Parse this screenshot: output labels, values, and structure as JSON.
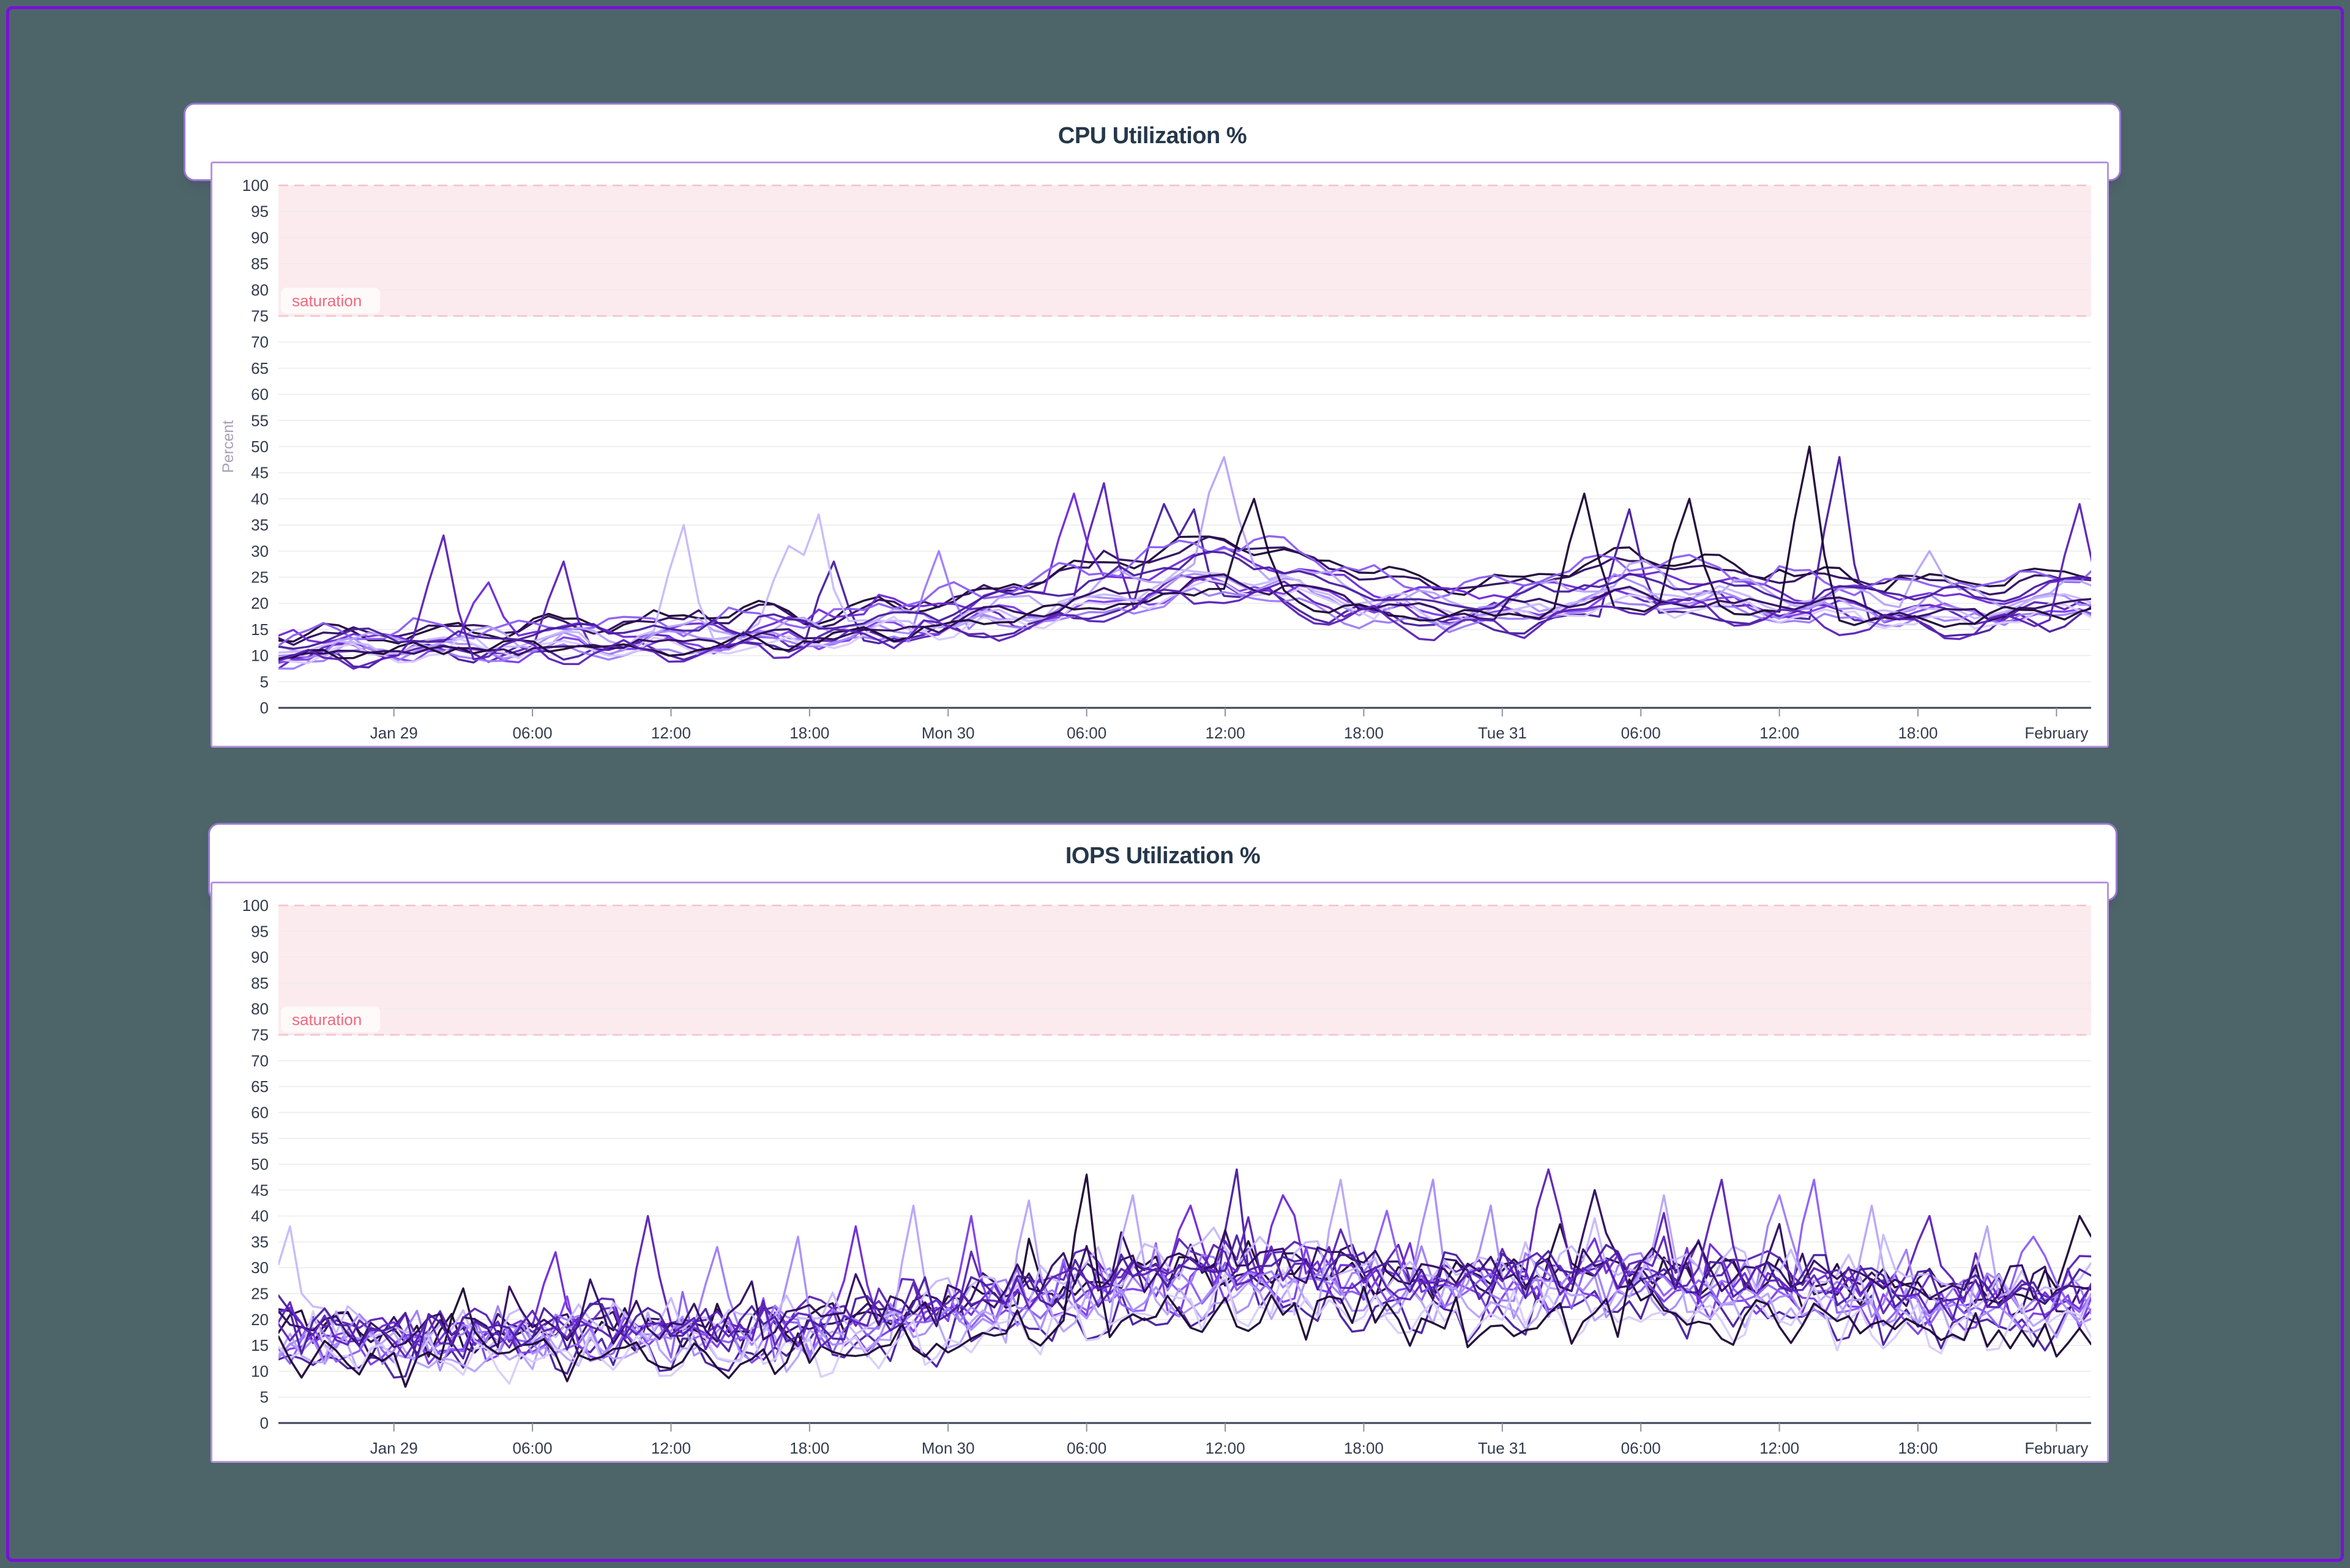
{
  "page": {
    "background_color": "#4d6569",
    "frame_color": "#7b10d9",
    "panel_color": "#ffffff",
    "title_card_border_color": "#9679d2",
    "panel_border_color": "#b794dd"
  },
  "chart_data": [
    {
      "type": "line",
      "title": "CPU Utilization %",
      "ylabel": "Percent",
      "xlabel": "",
      "ylim": [
        0,
        100
      ],
      "y_tick_step": 5,
      "x_unit": "hours since Jan 29 00:00",
      "x_domain": [
        -5,
        73.5
      ],
      "x_ticks": [
        {
          "t": 0,
          "label": "Jan 29"
        },
        {
          "t": 6,
          "label": "06:00"
        },
        {
          "t": 12,
          "label": "12:00"
        },
        {
          "t": 18,
          "label": "18:00"
        },
        {
          "t": 24,
          "label": "Mon 30"
        },
        {
          "t": 30,
          "label": "06:00"
        },
        {
          "t": 36,
          "label": "12:00"
        },
        {
          "t": 42,
          "label": "18:00"
        },
        {
          "t": 48,
          "label": "Tue 31"
        },
        {
          "t": 54,
          "label": "06:00"
        },
        {
          "t": 60,
          "label": "12:00"
        },
        {
          "t": 66,
          "label": "18:00"
        },
        {
          "t": 72,
          "label": "February"
        }
      ],
      "saturation_band": {
        "from": 75,
        "to": 100,
        "label": "saturation",
        "fill": "#fcebee",
        "dash_color": "#f5c2ca",
        "label_color": "#f2677d"
      },
      "grid": true,
      "legend": "none",
      "series_count": 16,
      "palette": [
        {
          "color": "#1a0533",
          "tone": "dark"
        },
        {
          "color": "#2d0a5e",
          "tone": "dark"
        },
        {
          "color": "#471d9e",
          "tone": "dark"
        },
        {
          "color": "#5b21b6",
          "tone": "medium"
        },
        {
          "color": "#6d28d9",
          "tone": "medium"
        },
        {
          "color": "#7c3aed",
          "tone": "medium"
        },
        {
          "color": "#8b5cf6",
          "tone": "medium"
        },
        {
          "color": "#9d7bf8",
          "tone": "light"
        },
        {
          "color": "#a78bfa",
          "tone": "light"
        },
        {
          "color": "#b7a3f9",
          "tone": "light"
        },
        {
          "color": "#c7b8fb",
          "tone": "pale"
        },
        {
          "color": "#d8ccfa",
          "tone": "pale"
        }
      ],
      "envelope_median_percent": [
        [
          -5,
          11
        ],
        [
          0,
          12
        ],
        [
          6,
          12.5
        ],
        [
          12,
          13.5
        ],
        [
          18,
          14.5
        ],
        [
          24,
          17
        ],
        [
          28,
          20
        ],
        [
          32,
          23
        ],
        [
          36,
          26.5
        ],
        [
          39,
          24
        ],
        [
          42,
          21
        ],
        [
          45,
          19
        ],
        [
          48,
          19
        ],
        [
          51,
          21.5
        ],
        [
          54,
          23
        ],
        [
          57,
          22
        ],
        [
          60,
          20
        ],
        [
          63,
          20
        ],
        [
          66,
          19
        ],
        [
          69,
          19
        ],
        [
          72,
          20.5
        ],
        [
          73.5,
          22
        ]
      ],
      "observed_peaks": [
        {
          "t": 2,
          "v": 33,
          "tone": "medium"
        },
        {
          "t": 4.3,
          "v": 24,
          "tone": "medium"
        },
        {
          "t": 7.6,
          "v": 28,
          "tone": "medium"
        },
        {
          "t": 12.4,
          "v": 35,
          "tone": "pale"
        },
        {
          "t": 16.8,
          "v": 31,
          "tone": "pale"
        },
        {
          "t": 18.4,
          "v": 37,
          "tone": "pale"
        },
        {
          "t": 19.2,
          "v": 28,
          "tone": "dark"
        },
        {
          "t": 23.5,
          "v": 30,
          "tone": "light"
        },
        {
          "t": 29.6,
          "v": 41,
          "tone": "medium"
        },
        {
          "t": 30.9,
          "v": 43,
          "tone": "medium"
        },
        {
          "t": 33.2,
          "v": 39,
          "tone": "dark"
        },
        {
          "t": 34.8,
          "v": 38,
          "tone": "dark"
        },
        {
          "t": 36.1,
          "v": 48,
          "tone": "light"
        },
        {
          "t": 37.5,
          "v": 40,
          "tone": "dark"
        },
        {
          "t": 51.4,
          "v": 41,
          "tone": "dark"
        },
        {
          "t": 53.8,
          "v": 38,
          "tone": "dark"
        },
        {
          "t": 56.4,
          "v": 40,
          "tone": "dark"
        },
        {
          "t": 61.3,
          "v": 50,
          "tone": "dark"
        },
        {
          "t": 62.8,
          "v": 48,
          "tone": "dark"
        },
        {
          "t": 66.5,
          "v": 30,
          "tone": "light"
        },
        {
          "t": 73.2,
          "v": 39,
          "tone": "medium"
        }
      ],
      "synth": {
        "seed": 11,
        "step_hours": 0.65,
        "noise": 2.1,
        "spike_prob": 0.05,
        "spike_amp": 5,
        "scale_range": [
          0.8,
          1.28
        ],
        "wobble_amp": 1.4,
        "wobble_period": 4.6,
        "floor": 7.5,
        "smooth": true
      }
    },
    {
      "type": "line",
      "title": "IOPS Utilization %",
      "ylabel": "",
      "xlabel": "",
      "ylim": [
        0,
        100
      ],
      "y_tick_step": 5,
      "x_unit": "hours since Jan 29 00:00",
      "x_domain": [
        -5,
        73.5
      ],
      "x_ticks": [
        {
          "t": 0,
          "label": "Jan 29"
        },
        {
          "t": 6,
          "label": "06:00"
        },
        {
          "t": 12,
          "label": "12:00"
        },
        {
          "t": 18,
          "label": "18:00"
        },
        {
          "t": 24,
          "label": "Mon 30"
        },
        {
          "t": 30,
          "label": "06:00"
        },
        {
          "t": 36,
          "label": "12:00"
        },
        {
          "t": 42,
          "label": "18:00"
        },
        {
          "t": 48,
          "label": "Tue 31"
        },
        {
          "t": 54,
          "label": "06:00"
        },
        {
          "t": 60,
          "label": "12:00"
        },
        {
          "t": 66,
          "label": "18:00"
        },
        {
          "t": 72,
          "label": "February"
        }
      ],
      "saturation_band": {
        "from": 75,
        "to": 100,
        "label": "saturation",
        "fill": "#fcebee",
        "dash_color": "#f5c2ca",
        "label_color": "#f2677d"
      },
      "grid": true,
      "legend": "none",
      "series_count": 16,
      "palette": [
        {
          "color": "#1a0533",
          "tone": "dark"
        },
        {
          "color": "#2d0a5e",
          "tone": "dark"
        },
        {
          "color": "#471d9e",
          "tone": "dark"
        },
        {
          "color": "#5b21b6",
          "tone": "medium"
        },
        {
          "color": "#6d28d9",
          "tone": "medium"
        },
        {
          "color": "#7c3aed",
          "tone": "medium"
        },
        {
          "color": "#8b5cf6",
          "tone": "medium"
        },
        {
          "color": "#9d7bf8",
          "tone": "light"
        },
        {
          "color": "#a78bfa",
          "tone": "light"
        },
        {
          "color": "#b7a3f9",
          "tone": "light"
        },
        {
          "color": "#c7b8fb",
          "tone": "pale"
        },
        {
          "color": "#d8ccfa",
          "tone": "pale"
        }
      ],
      "envelope_median_percent": [
        [
          -5,
          16
        ],
        [
          0,
          14.5
        ],
        [
          6,
          15.5
        ],
        [
          12,
          16
        ],
        [
          18,
          16
        ],
        [
          24,
          19.5
        ],
        [
          28,
          22
        ],
        [
          32,
          24.5
        ],
        [
          36,
          26
        ],
        [
          40,
          25.5
        ],
        [
          44,
          24.5
        ],
        [
          48,
          24
        ],
        [
          52,
          25.5
        ],
        [
          56,
          24.5
        ],
        [
          60,
          23.5
        ],
        [
          64,
          22.5
        ],
        [
          68,
          21.5
        ],
        [
          72,
          21.5
        ],
        [
          73.5,
          23
        ]
      ],
      "observed_peaks": [
        {
          "t": -4.7,
          "v": 38,
          "tone": "pale"
        },
        {
          "t": 3,
          "v": 26,
          "tone": "dark"
        },
        {
          "t": 7,
          "v": 33,
          "tone": "medium"
        },
        {
          "t": 11,
          "v": 40,
          "tone": "medium"
        },
        {
          "t": 14,
          "v": 34,
          "tone": "light"
        },
        {
          "t": 17.5,
          "v": 36,
          "tone": "light"
        },
        {
          "t": 20,
          "v": 38,
          "tone": "medium"
        },
        {
          "t": 22.5,
          "v": 42,
          "tone": "light"
        },
        {
          "t": 25,
          "v": 40,
          "tone": "medium"
        },
        {
          "t": 27.5,
          "v": 43,
          "tone": "light"
        },
        {
          "t": 30,
          "v": 48,
          "tone": "dark"
        },
        {
          "t": 32,
          "v": 44,
          "tone": "light"
        },
        {
          "t": 34.5,
          "v": 42,
          "tone": "medium"
        },
        {
          "t": 36.5,
          "v": 49,
          "tone": "dark"
        },
        {
          "t": 38.5,
          "v": 44,
          "tone": "medium"
        },
        {
          "t": 41,
          "v": 47,
          "tone": "light"
        },
        {
          "t": 43,
          "v": 41,
          "tone": "medium"
        },
        {
          "t": 45,
          "v": 47,
          "tone": "light"
        },
        {
          "t": 47.5,
          "v": 42,
          "tone": "light"
        },
        {
          "t": 50,
          "v": 49,
          "tone": "medium"
        },
        {
          "t": 52,
          "v": 45,
          "tone": "dark"
        },
        {
          "t": 55,
          "v": 44,
          "tone": "light"
        },
        {
          "t": 57.5,
          "v": 47,
          "tone": "medium"
        },
        {
          "t": 60,
          "v": 44,
          "tone": "light"
        },
        {
          "t": 61.5,
          "v": 47,
          "tone": "medium"
        },
        {
          "t": 64,
          "v": 42,
          "tone": "light"
        },
        {
          "t": 66.5,
          "v": 40,
          "tone": "medium"
        },
        {
          "t": 69,
          "v": 38,
          "tone": "light"
        },
        {
          "t": 71,
          "v": 36,
          "tone": "medium"
        },
        {
          "t": 73.2,
          "v": 40,
          "tone": "dark"
        }
      ],
      "synth": {
        "seed": 29,
        "step_hours": 0.5,
        "noise": 3.3,
        "spike_prob": 0.08,
        "spike_amp": 7,
        "scale_range": [
          0.78,
          1.25
        ],
        "wobble_amp": 1.8,
        "wobble_period": 2.3,
        "floor": 7,
        "smooth": false
      }
    }
  ],
  "style": {
    "grid_color": "#ebebeb",
    "axis_line_color": "#3d4254",
    "tick_mark_color": "#8d929c",
    "tick_text_color": "#333c4e",
    "title_text_color": "#25374a",
    "y_axis_label_color": "#a8a0b5"
  }
}
